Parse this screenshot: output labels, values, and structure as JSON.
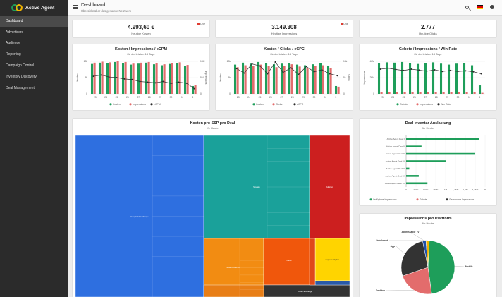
{
  "app": {
    "name": "Active Agent"
  },
  "sidebar": {
    "items": [
      {
        "label": "Dashboard",
        "active": true
      },
      {
        "label": "Advertisers"
      },
      {
        "label": "Audience"
      },
      {
        "label": "Reporting"
      },
      {
        "label": "Campaign Control"
      },
      {
        "label": "Inventory Discovery"
      },
      {
        "label": "Deal Management"
      }
    ]
  },
  "header": {
    "title": "Dashboard",
    "subtitle": "Übersicht über das gesamte Netzwerk",
    "icons": [
      "search-icon",
      "flag-icon",
      "user-icon"
    ]
  },
  "kpis": [
    {
      "value": "4.993,60 €",
      "label": "Heutige Kosten",
      "live": "Live"
    },
    {
      "value": "3.149.308",
      "label": "Heutige Impressions",
      "live": "Live"
    },
    {
      "value": "2.777",
      "label": "Heutige Clicks"
    }
  ],
  "colors": {
    "green": "#1e9e5a",
    "red": "#e36c6c",
    "line": "#2c2c2c",
    "sidebar": "#2b2b2b"
  },
  "chart_data": [
    {
      "type": "bar",
      "title": "Kosten / Impressions / eCPM",
      "subtitle": "für die letzten 14 Tage",
      "ylabel": "Kosten",
      "y2label": "Impressions",
      "left_ticks": [
        "10k",
        "5k",
        "0"
      ],
      "right_ticks": [
        "10M",
        "5M",
        "0"
      ],
      "categories": [
        "23",
        "24",
        "25",
        "26",
        "27",
        "28",
        "29",
        "30",
        "31",
        "1",
        "2",
        "3",
        "4",
        "5"
      ],
      "tick_labels": [
        "23",
        "24",
        "25",
        "26",
        "27",
        "28",
        "29",
        "30",
        "1",
        "3"
      ],
      "series": [
        {
          "name": "Kosten",
          "values": [
            9.2,
            9.6,
            9.4,
            9.8,
            9.5,
            9.0,
            9.3,
            9.6,
            9.1,
            8.8,
            9.2,
            9.4,
            8.6,
            2.4
          ]
        },
        {
          "name": "Impressions",
          "values": [
            9.6,
            9.9,
            9.7,
            10.0,
            9.8,
            9.3,
            9.6,
            9.8,
            9.4,
            9.1,
            9.5,
            9.7,
            8.9,
            2.6
          ]
        },
        {
          "name": "eCPM",
          "values": [
            5.4,
            5.8,
            5.2,
            5.0,
            4.6,
            4.4,
            3.8,
            3.6,
            3.4,
            3.8,
            3.2,
            3.6,
            3.3,
            1.6
          ]
        }
      ]
    },
    {
      "type": "bar",
      "title": "Kosten / Clicks / eCPC",
      "subtitle": "für die letzten 14 Tage",
      "ylabel": "Kosten",
      "y2label": "Clicks",
      "left_ticks": [
        "10k",
        "5k",
        "0"
      ],
      "right_ticks": [
        "10k",
        "5k",
        "0"
      ],
      "categories": [
        "23",
        "24",
        "25",
        "26",
        "27",
        "28",
        "29",
        "30",
        "31",
        "1",
        "2",
        "3",
        "4",
        "5"
      ],
      "tick_labels": [
        "23",
        "24",
        "25",
        "26",
        "27",
        "28",
        "29",
        "30",
        "1",
        "3"
      ],
      "series": [
        {
          "name": "Kosten",
          "values": [
            9.0,
            9.6,
            9.3,
            9.8,
            9.4,
            9.1,
            9.3,
            9.5,
            9.0,
            8.8,
            9.1,
            9.4,
            8.7,
            2.4
          ]
        },
        {
          "name": "Clicks",
          "values": [
            8.2,
            8.8,
            8.5,
            9.0,
            8.6,
            8.2,
            8.7,
            9.1,
            8.4,
            8.0,
            8.5,
            8.8,
            8.0,
            2.2
          ]
        },
        {
          "name": "eCPC",
          "values": [
            7.8,
            6.4,
            9.2,
            8.6,
            6.2,
            9.8,
            6.6,
            8.0,
            6.0,
            8.4,
            6.8,
            7.4,
            6.2,
            5.6
          ]
        }
      ]
    },
    {
      "type": "bar",
      "title": "Gebote / Impressions / Win Rate",
      "subtitle": "für die letzten 14 Tage",
      "ylabel": "Impressions",
      "left_ticks": [
        "40M",
        "20M",
        "0"
      ],
      "right_ticks": [],
      "categories": [
        "23",
        "24",
        "25",
        "26",
        "27",
        "28",
        "29",
        "30",
        "31",
        "1",
        "2",
        "3",
        "4",
        "5"
      ],
      "tick_labels": [
        "23",
        "24",
        "25",
        "26",
        "27",
        "28",
        "29",
        "30",
        "1",
        "3"
      ],
      "series": [
        {
          "name": "Gebote",
          "values": [
            9.4,
            9.7,
            9.6,
            9.8,
            9.5,
            9.2,
            9.4,
            9.7,
            9.3,
            9.0,
            9.3,
            9.5,
            8.8,
            2.6
          ]
        },
        {
          "name": "Impressions",
          "values": [
            0.5,
            0.5,
            0.5,
            0.5,
            0.5,
            0.5,
            0.5,
            0.5,
            0.5,
            0.5,
            0.5,
            0.5,
            0.5,
            0.3
          ]
        },
        {
          "name": "Win Rate",
          "values": [
            7.6,
            7.9,
            7.5,
            7.2,
            7.6,
            7.3,
            7.0,
            7.4,
            6.9,
            7.2,
            6.9,
            7.1,
            6.8,
            6.2
          ]
        }
      ]
    },
    {
      "type": "heatmap",
      "title": "Kosten pro SSP pro Deal",
      "subtitle": "für Heute",
      "labels": [
        "Google AdExchange",
        "Smaato",
        "Rubicon",
        "Smart AdServer",
        "Xandr",
        "Improve Digital",
        "Index Exchange",
        "Sovrn",
        "Teads",
        "PubMatic"
      ],
      "values": [
        3600,
        1900,
        900,
        800,
        700,
        500,
        450,
        300,
        200,
        120
      ]
    },
    {
      "type": "bar",
      "orientation": "horizontal",
      "title": "Deal Inventar Auslastung",
      "subtitle": "für Heute",
      "categories": [
        "Active Agent Deal I",
        "Active Agent Deal II",
        "Active Agent Deal III",
        "Active Agent Deal IV",
        "Active Agent Deal V",
        "Active Agent Deal VI",
        "Active Agent Deal VII"
      ],
      "x_ticks": [
        "0",
        "250K",
        "500K",
        "750K",
        "1M",
        "1,25M",
        "1,5M",
        "1,75M",
        "2M"
      ],
      "series": [
        {
          "name": "Verfügbare Impressions",
          "values": [
            1850000,
            390000,
            1750000,
            1000000,
            80000,
            320000,
            540000
          ]
        },
        {
          "name": "Gebote",
          "values": [
            0,
            0,
            0,
            0,
            0,
            0,
            0
          ]
        },
        {
          "name": "Gewonnene Impressions",
          "values": [
            0,
            0,
            0,
            0,
            0,
            0,
            0
          ]
        }
      ]
    },
    {
      "type": "pie",
      "title": "Impressions pro Plattform",
      "subtitle": "für Heute",
      "labels": [
        "Mobile",
        "Desktop",
        "App",
        "Addressable TV",
        "Unbekannt"
      ],
      "values": [
        47,
        22,
        27,
        2,
        2
      ],
      "colors": [
        "#1e9e5a",
        "#e36c6c",
        "#333333",
        "#1f4fa8",
        "#f0b400"
      ]
    }
  ]
}
